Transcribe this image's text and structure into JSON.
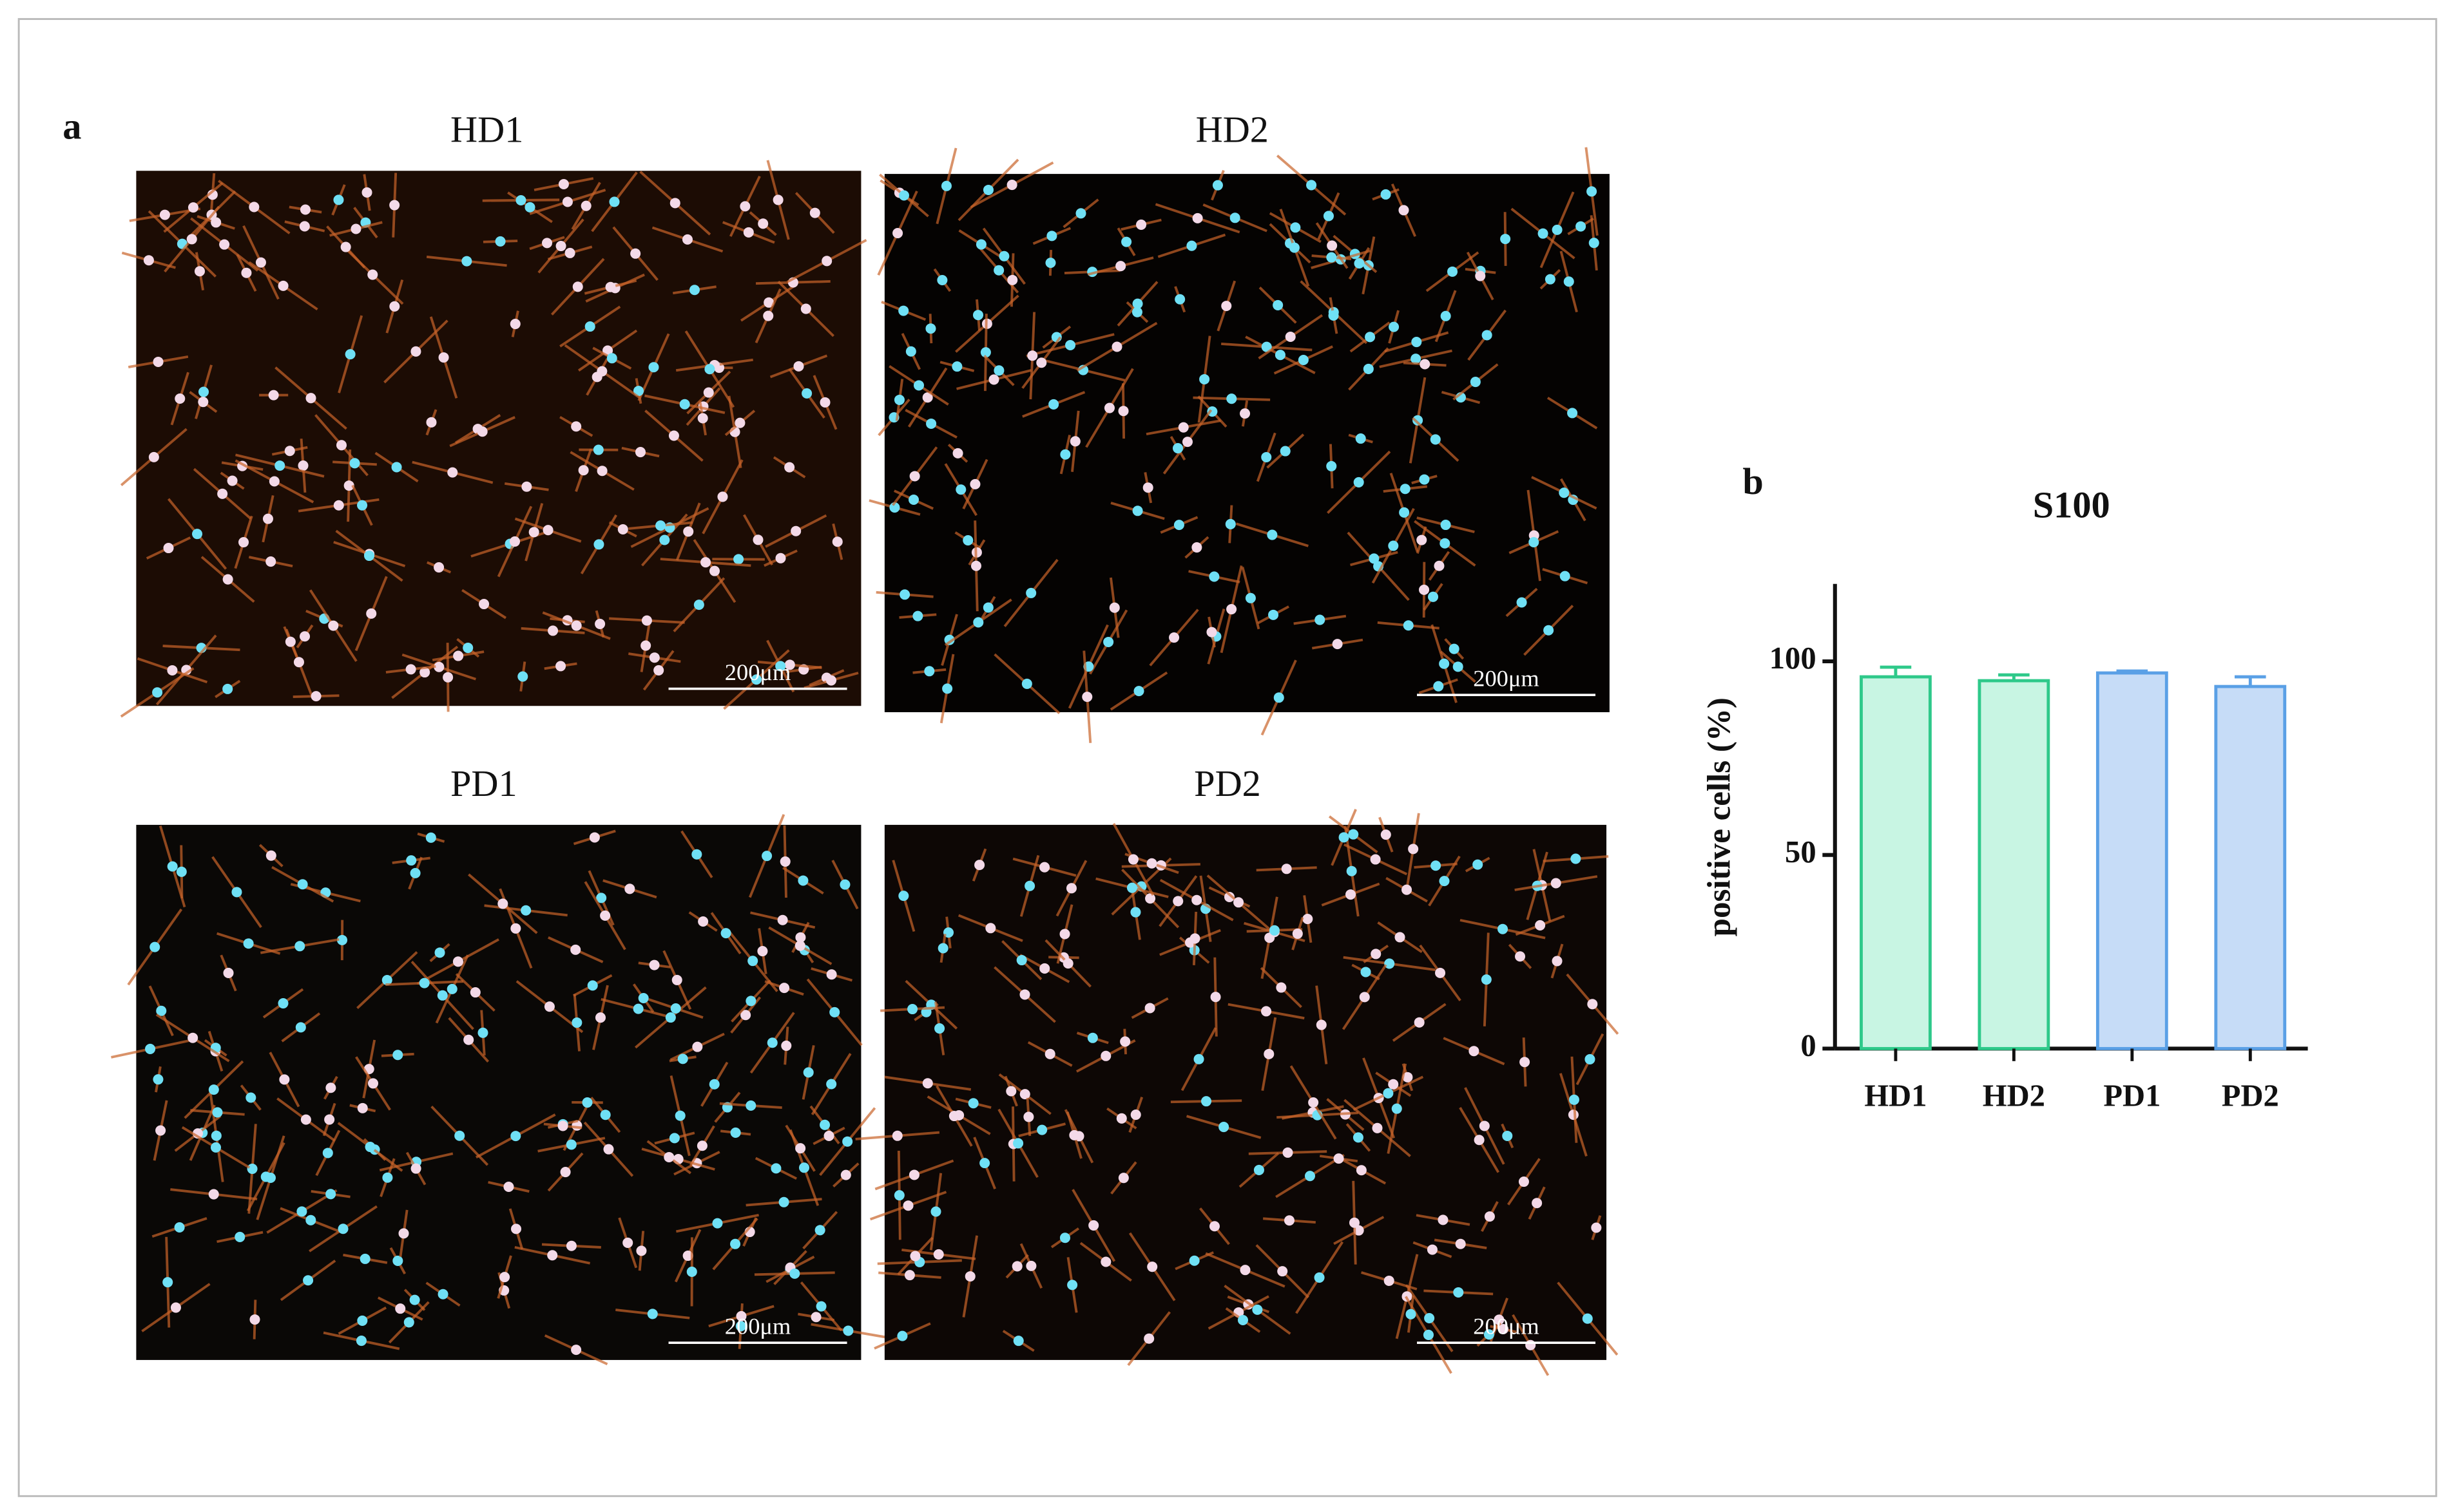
{
  "panel_a": {
    "label": "a",
    "images": [
      {
        "title": "HD1",
        "scale_bar": "200μm"
      },
      {
        "title": "HD2",
        "scale_bar": "200μm"
      },
      {
        "title": "PD1",
        "scale_bar": "200μm"
      },
      {
        "title": "PD2",
        "scale_bar": "200μm"
      }
    ]
  },
  "panel_b": {
    "label": "b"
  },
  "chart_data": {
    "type": "bar",
    "title": "S100",
    "y_label": "positive cells (%)",
    "categories": [
      "HD1",
      "HD2",
      "PD1",
      "PD2"
    ],
    "values": [
      96,
      95,
      97,
      93.5
    ],
    "errors": [
      2.5,
      1.5,
      0.5,
      2.5
    ],
    "colors": [
      "#c8f5e3",
      "#c8f5e3",
      "#c6dcf7",
      "#c6dcf7"
    ],
    "edge_colors": [
      "#2ec98a",
      "#2ec98a",
      "#5aa0e6",
      "#5aa0e6"
    ],
    "ylim": [
      0,
      120
    ],
    "yticks": [
      0,
      50,
      100
    ]
  }
}
